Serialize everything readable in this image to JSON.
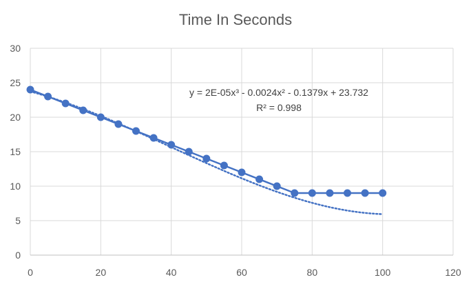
{
  "chart_data": {
    "type": "scatter",
    "title": "Time In Seconds",
    "xlim": [
      0,
      120
    ],
    "ylim": [
      0,
      30
    ],
    "x_ticks": [
      "0",
      "20",
      "40",
      "60",
      "80",
      "100",
      "120"
    ],
    "y_ticks": [
      "0",
      "5",
      "10",
      "15",
      "20",
      "25",
      "30"
    ],
    "grid": true,
    "series": [
      {
        "x": [
          0,
          5,
          10,
          15,
          20,
          25,
          30,
          35,
          40,
          45,
          50,
          55,
          60,
          65,
          70,
          75,
          80,
          85,
          90,
          95,
          100
        ],
        "y": [
          24,
          23,
          22,
          21,
          20,
          19,
          18,
          17,
          16,
          15,
          14,
          13,
          12,
          11,
          10,
          9,
          9,
          9,
          9,
          9,
          9
        ],
        "color": "#4472C4",
        "line": "solid",
        "markers": true
      }
    ],
    "trendline": {
      "kind": "polynomial",
      "coefficients": [
        2e-05,
        -0.0024,
        -0.1379,
        23.732
      ],
      "style": "dotted",
      "color": "#4472C4",
      "equation": "y = 2E-05x³ - 0.0024x² - 0.1379x + 23.732",
      "r_squared": "R² = 0.998"
    }
  }
}
